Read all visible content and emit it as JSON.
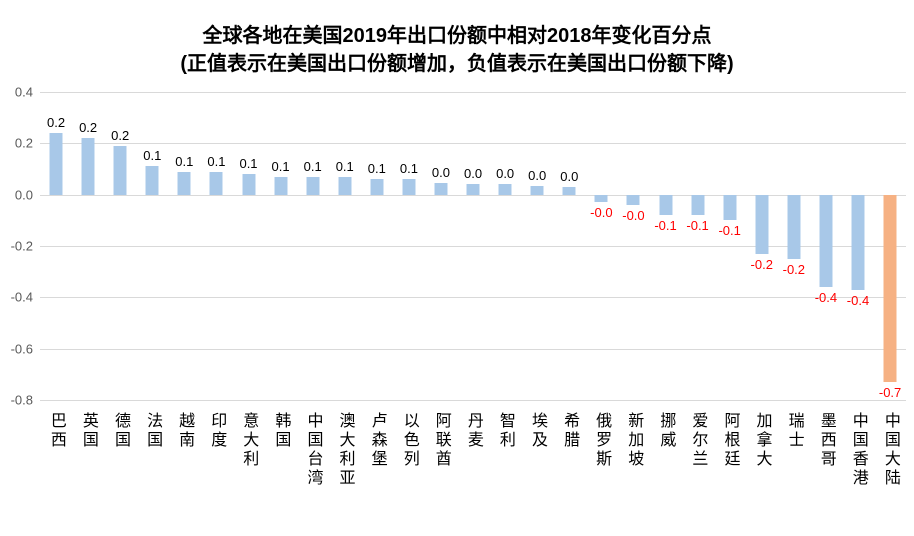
{
  "chart_data": {
    "type": "bar",
    "title": "全球各地在美国2019年出口份额中相对2018年变化百分点",
    "subtitle": "(正值表示在美国出口份额增加，负值表示在美国出口份额下降)",
    "xlabel": "",
    "ylabel": "",
    "ylim": [
      -0.8,
      0.4
    ],
    "yticks": [
      "0.4",
      "0.2",
      "0.0",
      "-0.2",
      "-0.4",
      "-0.6",
      "-0.8"
    ],
    "grid": true,
    "legend_position": "none",
    "colors": {
      "bar": "#A8C8E8",
      "highlight": "#F6B183",
      "positive_label": "#000000",
      "negative_label": "#FF0000",
      "gridline": "#D9D9D9",
      "ytick_text": "#595959"
    },
    "points": [
      {
        "label": "巴西",
        "value": 0.24,
        "display": "0.2",
        "highlight": false
      },
      {
        "label": "英国",
        "value": 0.22,
        "display": "0.2",
        "highlight": false
      },
      {
        "label": "德国",
        "value": 0.19,
        "display": "0.2",
        "highlight": false
      },
      {
        "label": "法国",
        "value": 0.11,
        "display": "0.1",
        "highlight": false
      },
      {
        "label": "越南",
        "value": 0.09,
        "display": "0.1",
        "highlight": false
      },
      {
        "label": "印度",
        "value": 0.09,
        "display": "0.1",
        "highlight": false
      },
      {
        "label": "意大利",
        "value": 0.08,
        "display": "0.1",
        "highlight": false
      },
      {
        "label": "韩国",
        "value": 0.07,
        "display": "0.1",
        "highlight": false
      },
      {
        "label": "中国台湾",
        "value": 0.07,
        "display": "0.1",
        "highlight": false
      },
      {
        "label": "澳大利亚",
        "value": 0.07,
        "display": "0.1",
        "highlight": false
      },
      {
        "label": "卢森堡",
        "value": 0.06,
        "display": "0.1",
        "highlight": false
      },
      {
        "label": "以色列",
        "value": 0.06,
        "display": "0.1",
        "highlight": false
      },
      {
        "label": "阿联酋",
        "value": 0.045,
        "display": "0.0",
        "highlight": false
      },
      {
        "label": "丹麦",
        "value": 0.04,
        "display": "0.0",
        "highlight": false
      },
      {
        "label": "智利",
        "value": 0.04,
        "display": "0.0",
        "highlight": false
      },
      {
        "label": "埃及",
        "value": 0.035,
        "display": "0.0",
        "highlight": false
      },
      {
        "label": "希腊",
        "value": 0.03,
        "display": "0.0",
        "highlight": false
      },
      {
        "label": "俄罗斯",
        "value": -0.03,
        "display": "-0.0",
        "highlight": false
      },
      {
        "label": "新加坡",
        "value": -0.04,
        "display": "-0.0",
        "highlight": false
      },
      {
        "label": "挪威",
        "value": -0.08,
        "display": "-0.1",
        "highlight": false
      },
      {
        "label": "爱尔兰",
        "value": -0.08,
        "display": "-0.1",
        "highlight": false
      },
      {
        "label": "阿根廷",
        "value": -0.1,
        "display": "-0.1",
        "highlight": false
      },
      {
        "label": "加拿大",
        "value": -0.23,
        "display": "-0.2",
        "highlight": false
      },
      {
        "label": "瑞士",
        "value": -0.25,
        "display": "-0.2",
        "highlight": false
      },
      {
        "label": "墨西哥",
        "value": -0.36,
        "display": "-0.4",
        "highlight": false
      },
      {
        "label": "中国香港",
        "value": -0.37,
        "display": "-0.4",
        "highlight": false
      },
      {
        "label": "中国大陆",
        "value": -0.73,
        "display": "-0.7",
        "highlight": true
      }
    ]
  }
}
